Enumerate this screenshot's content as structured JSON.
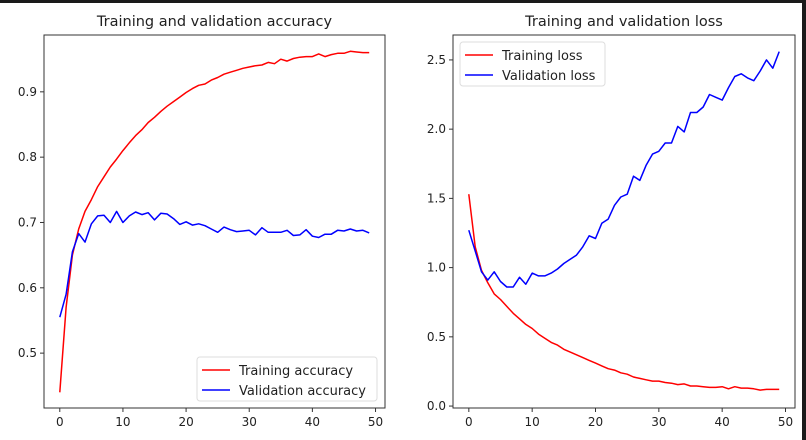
{
  "chart_data": [
    {
      "type": "line",
      "title": "Training and validation accuracy",
      "xlabel": "",
      "ylabel": "",
      "xlim": [
        -2.5,
        51.5
      ],
      "ylim": [
        0.416,
        0.987
      ],
      "xticks": [
        0,
        10,
        20,
        30,
        40,
        50
      ],
      "yticks": [
        0.5,
        0.6,
        0.7,
        0.8,
        0.9
      ],
      "grid": false,
      "legend": "lower-right",
      "x": [
        0,
        1,
        2,
        3,
        4,
        5,
        6,
        7,
        8,
        9,
        10,
        11,
        12,
        13,
        14,
        15,
        16,
        17,
        18,
        19,
        20,
        21,
        22,
        23,
        24,
        25,
        26,
        27,
        28,
        29,
        30,
        31,
        32,
        33,
        34,
        35,
        36,
        37,
        38,
        39,
        40,
        41,
        42,
        43,
        44,
        45,
        46,
        47,
        48,
        49
      ],
      "series": [
        {
          "name": "Training accuracy",
          "color": "#ff0000",
          "values": [
            0.44,
            0.57,
            0.65,
            0.69,
            0.717,
            0.735,
            0.755,
            0.77,
            0.785,
            0.797,
            0.81,
            0.822,
            0.833,
            0.842,
            0.853,
            0.861,
            0.87,
            0.878,
            0.885,
            0.892,
            0.899,
            0.905,
            0.91,
            0.912,
            0.918,
            0.922,
            0.927,
            0.93,
            0.933,
            0.936,
            0.938,
            0.94,
            0.941,
            0.945,
            0.943,
            0.95,
            0.947,
            0.951,
            0.953,
            0.954,
            0.954,
            0.958,
            0.954,
            0.957,
            0.959,
            0.959,
            0.962,
            0.961,
            0.96,
            0.96
          ]
        },
        {
          "name": "Validation accuracy",
          "color": "#0000ff",
          "values": [
            0.555,
            0.59,
            0.655,
            0.683,
            0.67,
            0.698,
            0.71,
            0.711,
            0.7,
            0.717,
            0.7,
            0.71,
            0.716,
            0.712,
            0.715,
            0.704,
            0.714,
            0.713,
            0.706,
            0.697,
            0.701,
            0.696,
            0.698,
            0.695,
            0.69,
            0.685,
            0.693,
            0.689,
            0.686,
            0.687,
            0.688,
            0.681,
            0.692,
            0.685,
            0.685,
            0.685,
            0.688,
            0.68,
            0.681,
            0.689,
            0.679,
            0.677,
            0.682,
            0.682,
            0.688,
            0.687,
            0.69,
            0.687,
            0.688,
            0.684
          ]
        }
      ]
    },
    {
      "type": "line",
      "title": "Training and validation loss",
      "xlabel": "",
      "ylabel": "",
      "xlim": [
        -2.5,
        51.5
      ],
      "ylim": [
        -0.014,
        2.68
      ],
      "xticks": [
        0,
        10,
        20,
        30,
        40,
        50
      ],
      "yticks": [
        0.0,
        0.5,
        1.0,
        1.5,
        2.0,
        2.5
      ],
      "grid": false,
      "legend": "upper-left",
      "x": [
        0,
        1,
        2,
        3,
        4,
        5,
        6,
        7,
        8,
        9,
        10,
        11,
        12,
        13,
        14,
        15,
        16,
        17,
        18,
        19,
        20,
        21,
        22,
        23,
        24,
        25,
        26,
        27,
        28,
        29,
        30,
        31,
        32,
        33,
        34,
        35,
        36,
        37,
        38,
        39,
        40,
        41,
        42,
        43,
        44,
        45,
        46,
        47,
        48,
        49
      ],
      "series": [
        {
          "name": "Training loss",
          "color": "#ff0000",
          "values": [
            1.53,
            1.15,
            0.98,
            0.89,
            0.81,
            0.77,
            0.72,
            0.67,
            0.63,
            0.59,
            0.56,
            0.52,
            0.49,
            0.46,
            0.44,
            0.41,
            0.39,
            0.37,
            0.35,
            0.33,
            0.31,
            0.29,
            0.27,
            0.26,
            0.24,
            0.23,
            0.21,
            0.2,
            0.19,
            0.18,
            0.18,
            0.17,
            0.165,
            0.155,
            0.16,
            0.145,
            0.145,
            0.14,
            0.135,
            0.135,
            0.14,
            0.125,
            0.14,
            0.13,
            0.13,
            0.125,
            0.115,
            0.12,
            0.12,
            0.12
          ]
        },
        {
          "name": "Validation loss",
          "color": "#0000ff",
          "values": [
            1.27,
            1.12,
            0.97,
            0.91,
            0.97,
            0.9,
            0.86,
            0.86,
            0.93,
            0.88,
            0.96,
            0.94,
            0.94,
            0.96,
            0.99,
            1.03,
            1.06,
            1.09,
            1.15,
            1.23,
            1.21,
            1.32,
            1.35,
            1.45,
            1.51,
            1.53,
            1.66,
            1.63,
            1.74,
            1.82,
            1.84,
            1.9,
            1.9,
            2.02,
            1.98,
            2.12,
            2.12,
            2.16,
            2.25,
            2.23,
            2.21,
            2.3,
            2.38,
            2.4,
            2.37,
            2.35,
            2.42,
            2.5,
            2.44,
            2.56
          ]
        }
      ]
    }
  ]
}
